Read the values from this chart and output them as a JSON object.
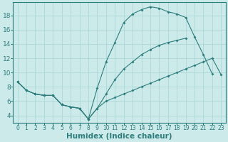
{
  "background_color": "#cceaea",
  "grid_color": "#add8d8",
  "line_color": "#2e7d7d",
  "xlabel": "Humidex (Indice chaleur)",
  "xlabel_fontsize": 7.5,
  "ytick_fontsize": 6.5,
  "xtick_fontsize": 5.5,
  "xlim": [
    -0.5,
    23.5
  ],
  "ylim": [
    3.0,
    19.8
  ],
  "yticks": [
    4,
    6,
    8,
    10,
    12,
    14,
    16,
    18
  ],
  "xticks": [
    0,
    1,
    2,
    3,
    4,
    5,
    6,
    7,
    8,
    9,
    10,
    11,
    12,
    13,
    14,
    15,
    16,
    17,
    18,
    19,
    20,
    21,
    22,
    23
  ],
  "curve_top_x": [
    0,
    1,
    2,
    3,
    4,
    5,
    6,
    7,
    8,
    9,
    10,
    11,
    12,
    13,
    14,
    15,
    16,
    17,
    18,
    19,
    20,
    21,
    22
  ],
  "curve_top_y": [
    8.7,
    7.5,
    7.0,
    6.8,
    6.8,
    5.5,
    5.2,
    5.0,
    3.5,
    7.8,
    11.5,
    14.2,
    17.0,
    18.2,
    18.8,
    19.2,
    19.0,
    18.5,
    18.2,
    17.7,
    15.0,
    12.5,
    9.8
  ],
  "curve_mid_x": [
    0,
    1,
    2,
    3,
    4,
    5,
    6,
    7,
    8,
    9,
    10,
    11,
    12,
    13,
    14,
    15,
    16,
    17,
    18,
    19
  ],
  "curve_mid_y": [
    8.7,
    7.5,
    7.0,
    6.8,
    6.8,
    5.5,
    5.2,
    5.0,
    3.5,
    5.0,
    7.0,
    9.0,
    10.5,
    11.5,
    12.5,
    13.2,
    13.8,
    14.2,
    14.5,
    14.8
  ],
  "curve_bot_x": [
    0,
    1,
    2,
    3,
    4,
    5,
    6,
    7,
    8,
    9,
    10,
    11,
    12,
    13,
    14,
    15,
    16,
    17,
    18,
    19,
    20,
    21,
    22,
    23
  ],
  "curve_bot_y": [
    8.7,
    7.5,
    7.0,
    6.8,
    6.8,
    5.5,
    5.2,
    5.0,
    3.5,
    5.0,
    6.0,
    6.5,
    7.0,
    7.5,
    8.0,
    8.5,
    9.0,
    9.5,
    10.0,
    10.5,
    11.0,
    11.5,
    12.0,
    9.7
  ]
}
